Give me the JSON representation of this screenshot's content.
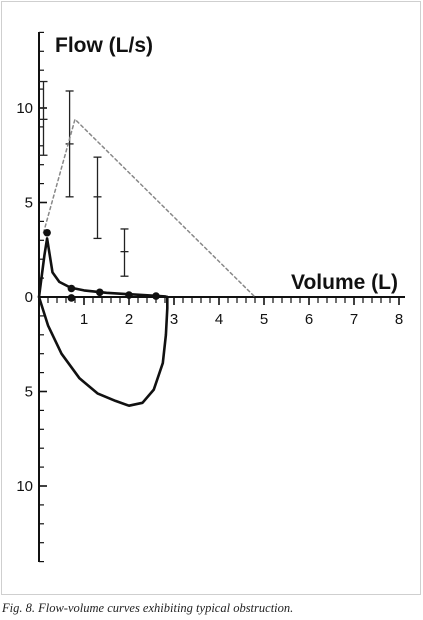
{
  "caption": "Fig. 8. Flow-volume curves exhibiting typical obstruction.",
  "chart_data": {
    "type": "line",
    "title": "",
    "ylabel": "Flow (L/s)",
    "xlabel": "Volume (L)",
    "xlim": [
      0,
      8
    ],
    "ylim": [
      -14,
      14
    ],
    "x_ticks": [
      "1",
      "2",
      "3",
      "4",
      "5",
      "6",
      "7",
      "8"
    ],
    "y_ticks_top": [
      "10",
      "5",
      "0"
    ],
    "y_ticks_bottom": [
      "5",
      "10"
    ],
    "note": "",
    "colors": {
      "curve": "#111111",
      "predicted": "#888888",
      "axis": "#111111"
    },
    "series": [
      {
        "style": "dashed",
        "x": [
          0.1,
          0.8,
          4.8
        ],
        "y": [
          3.4,
          9.4,
          0
        ]
      },
      {
        "style": "solid",
        "x": [
          0.0,
          0.12,
          0.18,
          0.22,
          0.3,
          0.45,
          0.7,
          1.0,
          1.5,
          2.0,
          2.5,
          2.8,
          2.85
        ],
        "y": [
          0,
          2.2,
          3.1,
          2.5,
          1.3,
          0.8,
          0.5,
          0.35,
          0.22,
          0.15,
          0.08,
          0.03,
          0
        ]
      },
      {
        "style": "solid",
        "x": [
          0.0,
          0.2,
          0.5,
          0.9,
          1.3,
          1.7,
          2.0,
          2.3,
          2.55,
          2.75,
          2.82,
          2.85,
          2.85
        ],
        "y": [
          0,
          -1.5,
          -3.0,
          -4.3,
          -5.1,
          -5.5,
          -5.75,
          -5.6,
          -4.9,
          -3.5,
          -2.0,
          -0.6,
          0
        ]
      }
    ],
    "markers": [
      {
        "x": 0.18,
        "y": 3.4
      },
      {
        "x": 0.72,
        "y": 0.45
      },
      {
        "x": 0.72,
        "y": -0.05
      },
      {
        "x": 1.35,
        "y": 0.25
      },
      {
        "x": 2.0,
        "y": 0.1
      },
      {
        "x": 2.6,
        "y": 0.05
      }
    ],
    "ranges": [
      {
        "x": 0.1,
        "low": 7.5,
        "high": 11.4,
        "mid": 9.4
      },
      {
        "x": 0.68,
        "low": 5.3,
        "high": 10.9,
        "mid": 8.1
      },
      {
        "x": 1.3,
        "low": 3.1,
        "high": 7.4,
        "mid": 5.3
      },
      {
        "x": 1.9,
        "low": 1.1,
        "high": 3.6,
        "mid": 2.4
      }
    ]
  }
}
